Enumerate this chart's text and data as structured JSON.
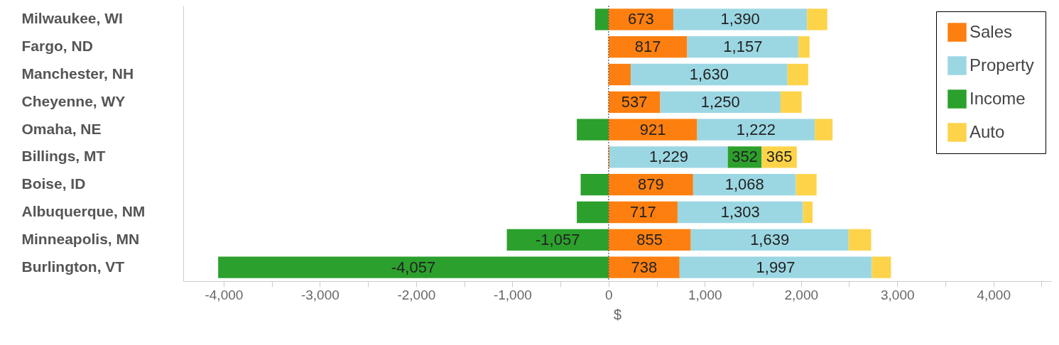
{
  "chart_data": {
    "type": "bar",
    "orientation": "horizontal",
    "stacked": true,
    "xlabel": "$",
    "categories": [
      "Milwaukee, WI",
      "Fargo, ND",
      "Manchester, NH",
      "Cheyenne, WY",
      "Omaha, NE",
      "Billings, MT",
      "Boise, ID",
      "Albuquerque, NM",
      "Minneapolis, MN",
      "Burlington, VT"
    ],
    "series": [
      {
        "name": "Sales",
        "color": "#fd7f0f",
        "values": [
          673,
          817,
          230,
          537,
          921,
          10,
          879,
          717,
          855,
          738
        ],
        "value_labels": [
          "673",
          "817",
          null,
          "537",
          "921",
          null,
          "879",
          "717",
          "855",
          "738"
        ]
      },
      {
        "name": "Property",
        "color": "#9bd7e3",
        "values": [
          1390,
          1157,
          1630,
          1250,
          1222,
          1229,
          1068,
          1303,
          1639,
          1997
        ],
        "value_labels": [
          "1,390",
          "1,157",
          "1,630",
          "1,250",
          "1,222",
          "1,229",
          "1,068",
          "1,303",
          "1,639",
          "1,997"
        ]
      },
      {
        "name": "Income",
        "color": "#2ca02c",
        "values": [
          -140,
          null,
          null,
          null,
          -330,
          352,
          -290,
          -330,
          -1057,
          -4057
        ],
        "value_labels": [
          null,
          null,
          null,
          null,
          null,
          "352",
          null,
          null,
          "-1,057",
          "-4,057"
        ]
      },
      {
        "name": "Auto",
        "color": "#fdd34a",
        "values": [
          210,
          115,
          215,
          220,
          185,
          365,
          215,
          100,
          235,
          200
        ],
        "value_labels": [
          null,
          null,
          null,
          null,
          null,
          "365",
          null,
          null,
          null,
          null
        ]
      }
    ],
    "xlim": [
      -4420,
      4600
    ],
    "xticks": [
      {
        "value": -4000,
        "label": "-4,000"
      },
      {
        "value": -3500,
        "label": null
      },
      {
        "value": -3000,
        "label": "-3,000"
      },
      {
        "value": -2500,
        "label": null
      },
      {
        "value": -2000,
        "label": "-2,000"
      },
      {
        "value": -1500,
        "label": null
      },
      {
        "value": -1000,
        "label": "-1,000"
      },
      {
        "value": -500,
        "label": null
      },
      0,
      {
        "value": 500,
        "label": null
      },
      {
        "value": 1000,
        "label": "1,000"
      },
      {
        "value": 1500,
        "label": null
      },
      {
        "value": 2000,
        "label": "2,000"
      },
      {
        "value": 2500,
        "label": null
      },
      {
        "value": 3000,
        "label": "3,000"
      },
      {
        "value": 3500,
        "label": null
      },
      {
        "value": 4000,
        "label": "4,000"
      },
      {
        "value": 4500,
        "label": null
      }
    ],
    "ref_lines": [
      {
        "axis": "x",
        "value": 0,
        "line_style": "dotted",
        "color": "#555555"
      }
    ],
    "legend": "top right"
  }
}
